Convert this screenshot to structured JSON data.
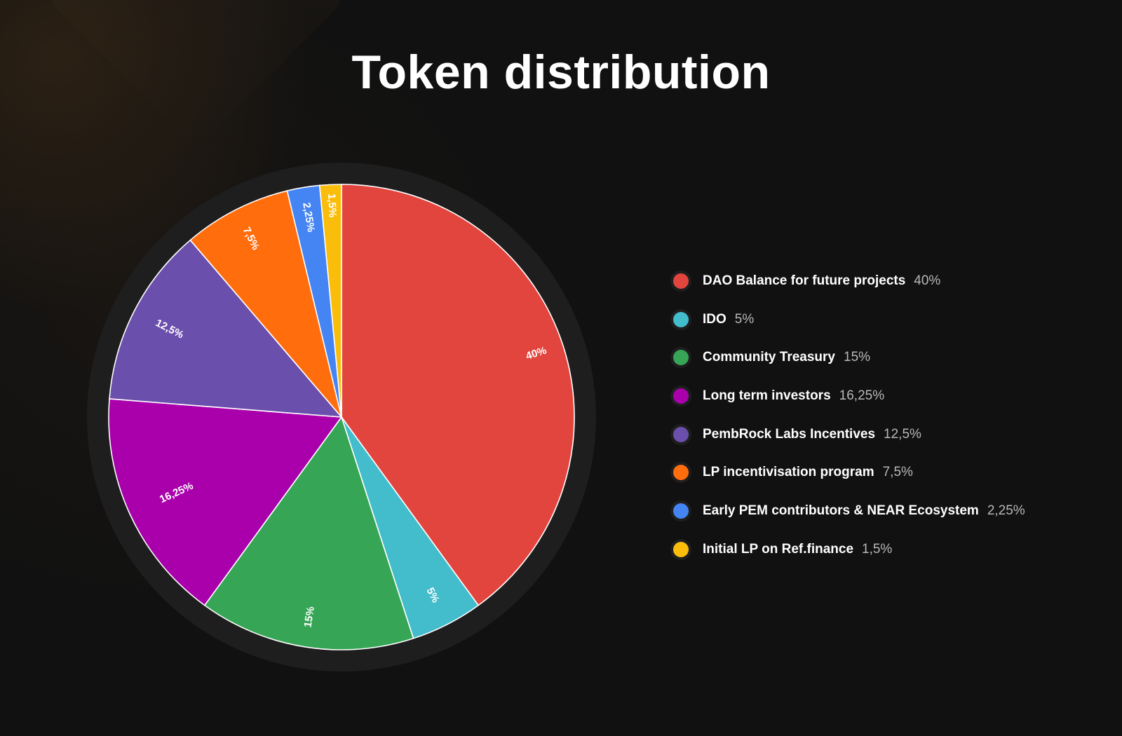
{
  "title": "Token distribution",
  "chart_data": {
    "type": "pie",
    "title": "Token distribution",
    "direction": "clockwise from top",
    "legend_position": "right",
    "slices": [
      {
        "name": "DAO Balance for future projects",
        "value": 40,
        "label": "40%",
        "color": "#e2453d"
      },
      {
        "name": "IDO",
        "value": 5,
        "label": "5%",
        "color": "#43bccb"
      },
      {
        "name": "Community Treasury",
        "value": 15,
        "label": "15%",
        "color": "#37a556"
      },
      {
        "name": "Long term investors",
        "value": 16.25,
        "label": "16,25%",
        "color": "#a900ac"
      },
      {
        "name": "PembRock Labs Incentives",
        "value": 12.5,
        "label": "12,5%",
        "color": "#6b4fac"
      },
      {
        "name": "LP incentivisation program",
        "value": 7.5,
        "label": "7,5%",
        "color": "#ff6d0d"
      },
      {
        "name": "Early PEM contributors & NEAR Ecosystem",
        "value": 2.25,
        "label": "2,25%",
        "color": "#4584f3"
      },
      {
        "name": "Initial LP on Ref.finance",
        "value": 1.5,
        "label": "1,5%",
        "color": "#fbbd0b"
      }
    ]
  }
}
